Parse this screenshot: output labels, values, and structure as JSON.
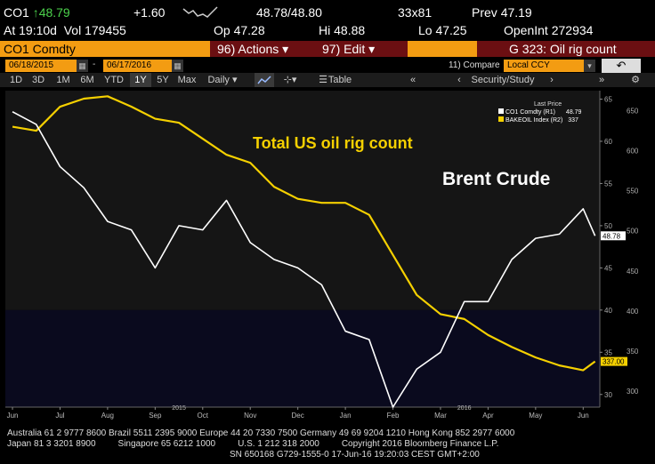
{
  "quote": {
    "ticker": "CO1",
    "arrow": "↑",
    "last": "48.79",
    "change": "+1.60",
    "bid_ask": "48.78/48.80",
    "size": "33x81",
    "prev_label": "Prev",
    "prev": "47.19",
    "at_label": "At",
    "time": "19:10d",
    "vol_label": "Vol",
    "vol": "179455",
    "op_label": "Op",
    "open": "47.28",
    "hi_label": "Hi",
    "high": "48.88",
    "lo_label": "Lo",
    "low": "47.25",
    "openint_label": "OpenInt",
    "openint": "272934"
  },
  "menu": {
    "security": "CO1 Comdty",
    "actions": "96) Actions ▾",
    "edit": "97) Edit ▾",
    "page": "G 323: Oil rig count"
  },
  "dates": {
    "start": "06/18/2015",
    "end": "06/17/2016",
    "compare_label": "11) Compare",
    "compare_value": "Local CCY"
  },
  "toolbar": {
    "ranges": [
      "1D",
      "3D",
      "1M",
      "6M",
      "YTD",
      "1Y",
      "5Y",
      "Max"
    ],
    "active_range": "1Y",
    "frequency": "Daily ▾",
    "table": "Table",
    "security_study": "Security/Study"
  },
  "legend": {
    "title": "Last Price",
    "entries": [
      {
        "label": "CO1 Comdty  (R1)",
        "value": "48.79",
        "color": "#ffffff"
      },
      {
        "label": "BAKEOIL Index  (R2)",
        "value": "337",
        "color": "#f5d000"
      }
    ]
  },
  "annotations": {
    "rig": "Total US oil rig count",
    "brent": "Brent Crude"
  },
  "chart_data": {
    "type": "line",
    "x_tick_labels": [
      "Jun",
      "Jul",
      "Aug",
      "Sep",
      "Oct",
      "Nov",
      "Dec",
      "Jan",
      "Feb",
      "Mar",
      "Apr",
      "May",
      "Jun"
    ],
    "year_labels": [
      "2015",
      "2016"
    ],
    "r1_ticks": [
      30,
      35,
      40,
      45,
      50,
      55,
      60,
      65
    ],
    "r1_range": [
      28.5,
      66
    ],
    "r2_ticks": [
      300,
      350,
      400,
      450,
      500,
      550,
      600,
      650
    ],
    "r2_range": [
      280,
      675
    ],
    "last_value_labels": {
      "r1": "48.78",
      "r2": "337.00"
    },
    "series": [
      {
        "name": "CO1 Comdty (R1)",
        "color": "#ffffff",
        "x": [
          0.0,
          0.5,
          1.0,
          1.5,
          2.0,
          2.5,
          3.0,
          3.5,
          4.0,
          4.5,
          5.0,
          5.5,
          6.0,
          6.5,
          7.0,
          7.5,
          8.0,
          8.5,
          9.0,
          9.5,
          10.0,
          10.5,
          11.0,
          11.5,
          12.0,
          12.25
        ],
        "y": [
          63.5,
          62.0,
          57.0,
          54.5,
          50.5,
          49.5,
          45.0,
          50.0,
          49.5,
          53.0,
          48.0,
          46.0,
          45.0,
          43.0,
          37.5,
          36.5,
          28.5,
          33.0,
          35.0,
          41.0,
          41.0,
          46.0,
          48.5,
          49.0,
          52.0,
          48.8
        ]
      },
      {
        "name": "BAKEOIL Index (R2)",
        "color": "#f5d000",
        "x": [
          0.0,
          0.5,
          1.0,
          1.5,
          2.0,
          2.5,
          3.0,
          3.5,
          4.0,
          4.5,
          5.0,
          5.5,
          6.0,
          6.5,
          7.0,
          7.5,
          8.0,
          8.5,
          9.0,
          9.5,
          10.0,
          10.5,
          11.0,
          11.5,
          12.0,
          12.25
        ],
        "y": [
          630,
          625,
          655,
          665,
          668,
          655,
          640,
          635,
          615,
          595,
          585,
          555,
          540,
          535,
          535,
          520,
          470,
          420,
          396,
          390,
          370,
          355,
          342,
          332,
          326,
          337
        ]
      }
    ]
  },
  "footer": {
    "line1": "Australia 61 2 9777 8600 Brazil 5511 2395 9000 Europe 44 20 7330 7500 Germany 49 69 9204 1210 Hong Kong 852 2977 6000",
    "line2": "Japan 81 3 3201 8900         Singapore 65 6212 1000         U.S. 1 212 318 2000         Copyright 2016 Bloomberg Finance L.P.",
    "line3": "SN 650168 G729-1555-0 17-Jun-16 19:20:03 CEST GMT+2:00"
  },
  "colors": {
    "orange": "#f39c12",
    "menu_dark": "#6b0f12",
    "rig_line": "#f5d000",
    "price_line": "#ffffff",
    "lower_band": "#0a0a1e"
  }
}
